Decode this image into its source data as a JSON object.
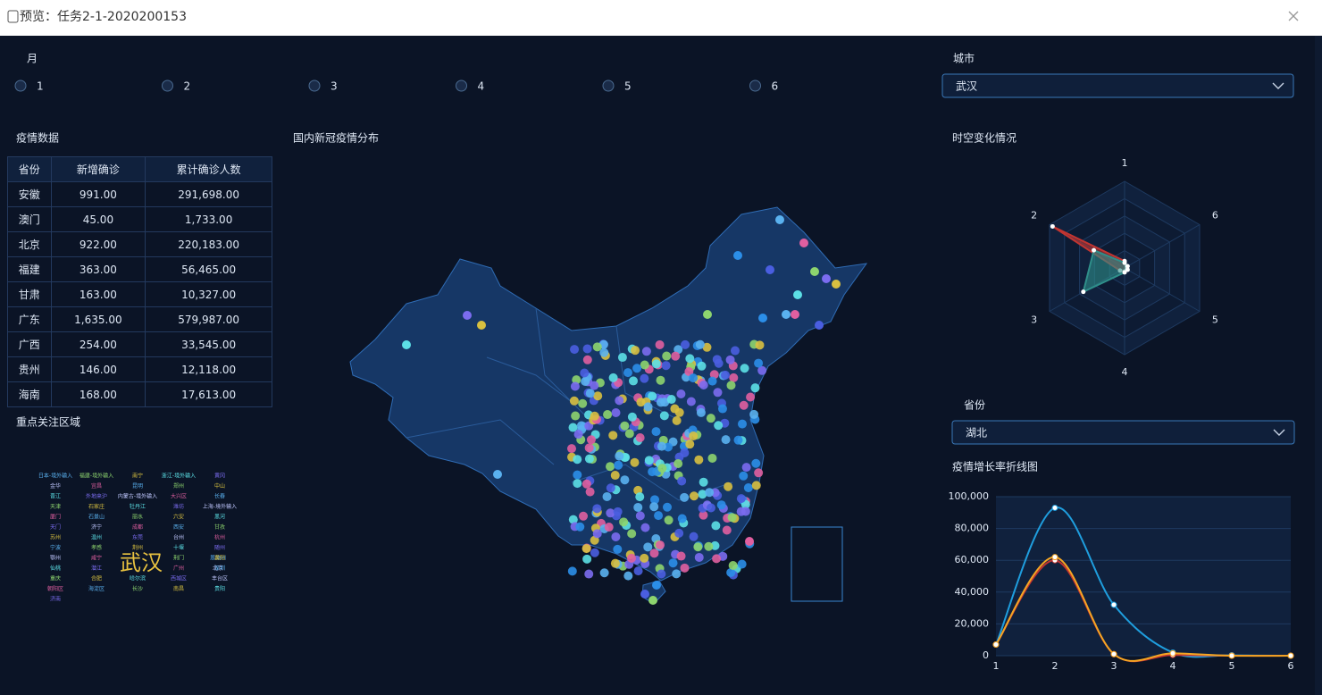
{
  "window_title": "预览：任务2-1-2020200153",
  "month": {
    "label": "月",
    "options": [
      "1",
      "2",
      "3",
      "4",
      "5",
      "6"
    ]
  },
  "city": {
    "label": "城市",
    "value": "武汉"
  },
  "table": {
    "title": "疫情数据",
    "header": [
      "省份",
      "新增确诊",
      "累计确诊人数"
    ],
    "rows": [
      [
        "安徽",
        "991.00",
        "291,698.00"
      ],
      [
        "澳门",
        "45.00",
        "1,733.00"
      ],
      [
        "北京",
        "922.00",
        "220,183.00"
      ],
      [
        "福建",
        "363.00",
        "56,465.00"
      ],
      [
        "甘肃",
        "163.00",
        "10,327.00"
      ],
      [
        "广东",
        "1,635.00",
        "579,987.00"
      ],
      [
        "广西",
        "254.00",
        "33,545.00"
      ],
      [
        "贵州",
        "146.00",
        "12,118.00"
      ],
      [
        "海南",
        "168.00",
        "17,613.00"
      ]
    ]
  },
  "map": {
    "title": "国内新冠疫情分布"
  },
  "word_cloud": {
    "title": "重点关注区域",
    "words": [
      "武汉",
      "日本-境外输入",
      "福建-境外输入",
      "南宁",
      "浙江-境外输入",
      "黄冈",
      "金华",
      "宜昌",
      "昆明",
      "郑州",
      "中山",
      "晋江",
      "外地来沪",
      "内蒙古-境外输入",
      "大兴区",
      "长春",
      "天津",
      "石家庄",
      "牡丹江",
      "潍坊",
      "上海-境外输入",
      "厦门",
      "石景山",
      "丽水",
      "六安",
      "黑河",
      "天门",
      "济宁",
      "成都",
      "西安",
      "甘孜",
      "苏州",
      "温州",
      "东莞",
      "台州",
      "杭州",
      "宁波",
      "孝感",
      "荆州",
      "十堰",
      "随州",
      "鄂州",
      "咸宁",
      "恩施州",
      "荆门",
      "襄阳",
      "仙桃",
      "潜江",
      "北京",
      "广州",
      "深圳",
      "重庆",
      "合肥",
      "哈尔滨",
      "西城区",
      "丰台区",
      "朝阳区",
      "海淀区",
      "长沙",
      "南昌",
      "贵阳",
      "济南"
    ]
  },
  "province": {
    "label": "省份",
    "value": "湖北"
  },
  "chart_data": [
    {
      "type": "radar",
      "title": "时空变化情况",
      "indicators": [
        "1",
        "2",
        "3",
        "4",
        "5",
        "6"
      ],
      "rlim": [
        0,
        100
      ],
      "series": [
        {
          "color": "#c23531",
          "values": [
            8,
            96,
            6,
            4,
            3,
            3
          ]
        },
        {
          "color": "#2f8f8a",
          "values": [
            6,
            41,
            55,
            5,
            4,
            4
          ]
        }
      ]
    },
    {
      "type": "line",
      "title": "疫情增长率折线图",
      "categories": [
        "1",
        "2",
        "3",
        "4",
        "5",
        "6"
      ],
      "ylim": [
        0,
        100000
      ],
      "yticks": [
        0,
        {
          "value": 20000,
          "label": "20,000"
        },
        {
          "value": 40000,
          "label": "40,000"
        },
        {
          "value": 60000,
          "label": "60,000"
        },
        {
          "value": 80000,
          "label": "80,000"
        },
        {
          "value": 100000,
          "label": "100,000"
        }
      ],
      "grid": true,
      "series": [
        {
          "color": "#1f9ede",
          "values": [
            7000,
            93000,
            32000,
            2000,
            300,
            0
          ]
        },
        {
          "color": "#c23531",
          "values": [
            7000,
            60000,
            1000,
            500,
            0,
            0
          ]
        },
        {
          "color": "#f5a623",
          "values": [
            7000,
            62000,
            1000,
            1500,
            0,
            0
          ]
        }
      ]
    }
  ]
}
